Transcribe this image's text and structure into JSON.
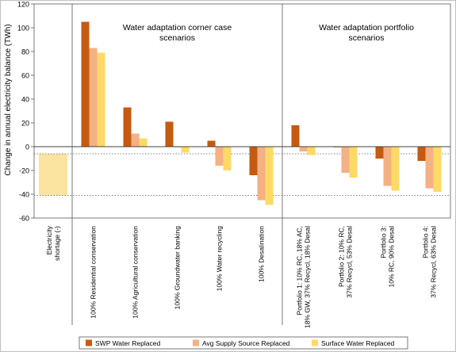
{
  "chart_data": {
    "type": "bar",
    "ylabel": "Change in annual electricity balance (TWh)",
    "ylim": [
      -60,
      120
    ],
    "yticks": [
      -60,
      -40,
      -20,
      0,
      20,
      40,
      60,
      80,
      100,
      120
    ],
    "grid": false,
    "legend_position": "bottom",
    "categories": [
      "Electricity shortage (-)",
      "100% Residential conservation",
      "100% Agricultural conservation",
      "100% Groundwater banking",
      "100% Water recycling",
      "100% Desalination",
      "Portfolio 1: 10% RC, 18% AC, 18% GW, 37% Recycl, 18% Desal",
      "Portfolio 2: 10% RC, 37% Recycl, 53% Desal",
      "Portfolio 3: 10% RC, 90% Desal",
      "Portfolio 4: 37% Recycl, 63% Desal"
    ],
    "category_labels": [
      [
        "Electricity",
        "shortage (-)"
      ],
      [
        "100% Residential conservation"
      ],
      [
        "100% Agricultural conservation"
      ],
      [
        "100% Groundwater banking"
      ],
      [
        "100% Water recycling"
      ],
      [
        "100% Desalination"
      ],
      [
        "Portfolio 1: 10% RC, 18% AC,",
        "18% GW, 37% Recycl, 18% Desal"
      ],
      [
        "Portfolio 2: 10% RC,",
        "37% Recycl, 53% Desal"
      ],
      [
        "Portfolio 3:",
        "10% RC, 90% Desal"
      ],
      [
        "Portfolio 4:",
        "37% Recycl, 63% Desal"
      ]
    ],
    "series": [
      {
        "name": "SWP Water Replaced",
        "color": "#c55a11",
        "values": [
          null,
          105,
          33,
          21,
          5,
          -24,
          18,
          0,
          -10,
          -12
        ]
      },
      {
        "name": "Avg Supply Source Replaced",
        "color": "#f4b183",
        "values": [
          null,
          83,
          11,
          0,
          -16,
          -45,
          -4,
          -22,
          -33,
          -35
        ]
      },
      {
        "name": "Surface Water Replaced",
        "color": "#ffd966",
        "values": [
          null,
          79,
          7,
          -5,
          -20,
          -49,
          -7,
          -26,
          -37,
          -38
        ]
      }
    ],
    "shortage_range": {
      "name": "Electricity shortage (-)",
      "color": "#fbe3a0",
      "from": -6,
      "to": -41
    },
    "reference_lines": [
      -6,
      -41
    ],
    "annotations": [
      {
        "text": [
          "Water adaptation corner case",
          "scenarios"
        ]
      },
      {
        "text": [
          "Water adaptation portfolio",
          "scenarios"
        ]
      }
    ]
  }
}
